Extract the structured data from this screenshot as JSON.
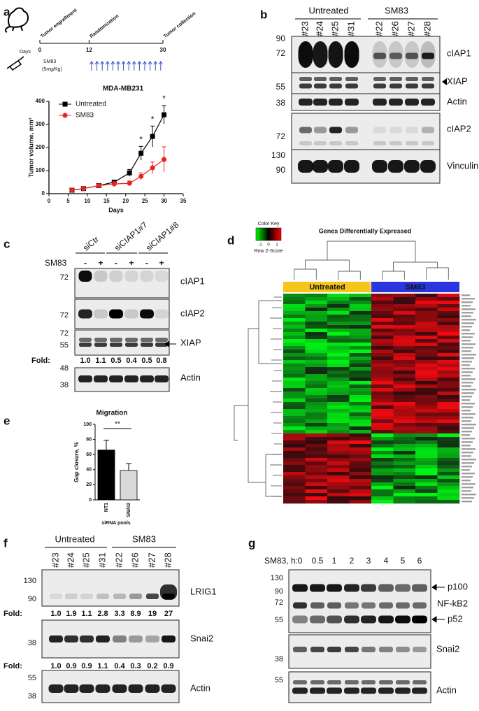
{
  "panels": {
    "a": {
      "letter": "a",
      "events": [
        "Tumor engraftment",
        "Randomization",
        "Tumor collection"
      ],
      "days_label": "Days",
      "day_ticks": [
        0,
        12,
        30
      ],
      "drug": "SM83",
      "dose": "(5mg/Kg)"
    },
    "b": {
      "letter": "b",
      "groups": [
        "Untreated",
        "SM83"
      ],
      "lanes": [
        "#23",
        "#24",
        "#25",
        "#31",
        "#22",
        "#26",
        "#27",
        "#28"
      ],
      "markers": [
        90,
        72,
        55,
        38,
        72,
        130,
        90
      ],
      "proteins": [
        "cIAP1",
        "XIAP",
        "Actin",
        "cIAP2",
        "Vinculin"
      ]
    },
    "c": {
      "letter": "c",
      "groups": [
        "siCtr",
        "siCIAP1#7",
        "siCIAP1#8"
      ],
      "treatment": "SM83",
      "signs": [
        "-",
        "+",
        "-",
        "+",
        "-",
        "+"
      ],
      "markers": [
        72,
        72,
        72,
        55,
        48,
        38
      ],
      "proteins": [
        "cIAP1",
        "cIAP2",
        "XIAP",
        "Actin"
      ],
      "fold_label": "Fold:",
      "fold": [
        "1.0",
        "1.1",
        "0.5",
        "0.4",
        "0.5",
        "0.8"
      ]
    },
    "d": {
      "letter": "d",
      "key_title": "Color Key",
      "key_ticks": [
        -1,
        0,
        1
      ],
      "key_label": "Row Z-Score",
      "title": "Genes Differentially Expressed",
      "groups": [
        "Untreated",
        "SM83"
      ]
    },
    "e": {
      "letter": "e"
    },
    "f": {
      "letter": "f",
      "groups": [
        "Untreated",
        "SM83"
      ],
      "lanes": [
        "#23",
        "#24",
        "#25",
        "#31",
        "#22",
        "#26",
        "#27",
        "#28"
      ],
      "markers": [
        130,
        90,
        38,
        55,
        38
      ],
      "proteins": [
        "LRIG1",
        "Snai2",
        "Actin"
      ],
      "fold_label": "Fold:",
      "fold": [
        [
          "1.0",
          "1.9",
          "1.1",
          "2.8",
          "3.3",
          "8.9",
          "19",
          "27"
        ],
        [
          "1.0",
          "0.9",
          "0.9",
          "1.1",
          "0.4",
          "0.3",
          "0.2",
          "0.9"
        ]
      ]
    },
    "g": {
      "letter": "g",
      "treatment": "SM83, h:",
      "times": [
        0,
        0.5,
        1,
        2,
        3,
        4,
        5,
        6
      ],
      "markers": [
        130,
        90,
        72,
        55,
        38,
        55
      ],
      "proteins": [
        "p100",
        "NF-kB2",
        "p52",
        "Snai2",
        "Actin"
      ]
    }
  },
  "chart_data": [
    {
      "type": "line",
      "title": "MDA-MB231",
      "x_label": "Days",
      "y_label": "Tumor volume, mm³",
      "x": [
        6,
        9,
        13,
        17,
        21,
        24,
        27,
        30
      ],
      "series": [
        {
          "name": "Untreated",
          "color": "#000000",
          "marker": "square",
          "values": [
            15,
            22,
            35,
            50,
            90,
            175,
            248,
            342
          ],
          "errors": [
            3,
            4,
            6,
            9,
            15,
            30,
            45,
            40
          ]
        },
        {
          "name": "SM83",
          "color": "#e8231f",
          "marker": "circle",
          "values": [
            15,
            22,
            35,
            42,
            45,
            75,
            112,
            148
          ],
          "errors": [
            3,
            4,
            6,
            10,
            10,
            15,
            25,
            55
          ]
        }
      ],
      "annotations": [
        {
          "text": "*",
          "x": 24
        },
        {
          "text": "*",
          "x": 27
        },
        {
          "text": "*",
          "x": 30
        }
      ],
      "xlim": [
        0,
        35
      ],
      "xticks": [
        0,
        5,
        10,
        15,
        20,
        25,
        30,
        35
      ],
      "ylim": [
        0,
        400
      ],
      "yticks": [
        0,
        100,
        200,
        300,
        400
      ],
      "legend": "upper left"
    },
    {
      "type": "bar",
      "title": "Migration",
      "x_label": "siRNA pools",
      "y_label": "Gap closure, %",
      "categories": [
        "NT1",
        "SNAI2"
      ],
      "values": [
        66,
        39
      ],
      "errors": [
        13,
        9
      ],
      "colors": [
        "#000000",
        "#d9d9d9"
      ],
      "annotation": "**",
      "ylim": [
        0,
        100
      ],
      "yticks": [
        0,
        20,
        40,
        60,
        80,
        100
      ]
    }
  ]
}
